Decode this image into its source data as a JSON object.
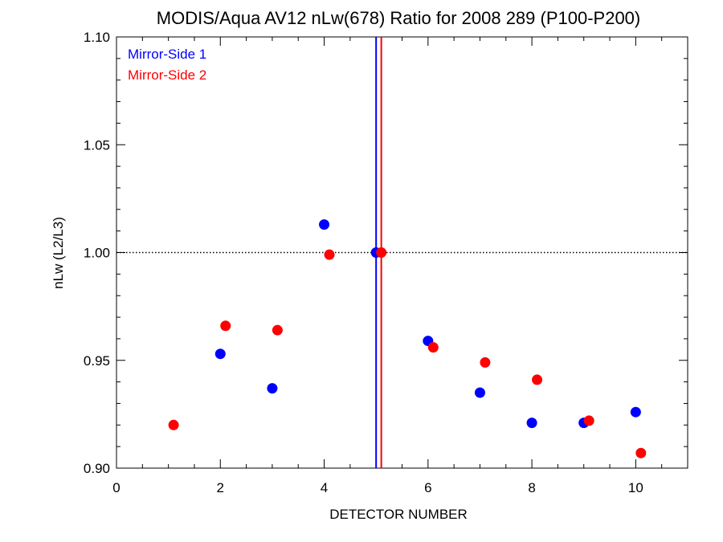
{
  "chart_data": {
    "type": "scatter",
    "title": "MODIS/Aqua AV12 nLw(678) Ratio for 2008 289 (P100-P200)",
    "xlabel": "DETECTOR NUMBER",
    "ylabel": "nLw (L2/L3)",
    "xlim": [
      0,
      11
    ],
    "ylim": [
      0.9,
      1.1
    ],
    "xticks": [
      0,
      2,
      4,
      6,
      8,
      10
    ],
    "yticks": [
      0.9,
      0.95,
      1.0,
      1.05,
      1.1
    ],
    "xtick_labels": [
      "0",
      "2",
      "4",
      "6",
      "8",
      "10"
    ],
    "ytick_labels": [
      "0.90",
      "0.95",
      "1.00",
      "1.05",
      "1.10"
    ],
    "reference_line_y": 1.0,
    "vertical_lines": [
      {
        "series": "Mirror-Side 1",
        "x": 5.0,
        "color": "#0000ff"
      },
      {
        "series": "Mirror-Side 2",
        "x": 5.1,
        "color": "#ff0000"
      }
    ],
    "legend_position": "top-left",
    "series": [
      {
        "name": "Mirror-Side 1",
        "color": "#0000ff",
        "x": [
          2,
          3,
          4,
          5,
          6,
          7,
          8,
          9,
          10
        ],
        "y": [
          0.953,
          0.937,
          1.013,
          1.0,
          0.959,
          0.935,
          0.921,
          0.921,
          0.926
        ]
      },
      {
        "name": "Mirror-Side 2",
        "color": "#ff0000",
        "x": [
          1.1,
          2.1,
          3.1,
          4.1,
          5.1,
          6.1,
          7.1,
          8.1,
          9.1,
          10.1
        ],
        "y": [
          0.92,
          0.966,
          0.964,
          0.999,
          1.0,
          0.956,
          0.949,
          0.941,
          0.922,
          0.907
        ]
      }
    ]
  }
}
